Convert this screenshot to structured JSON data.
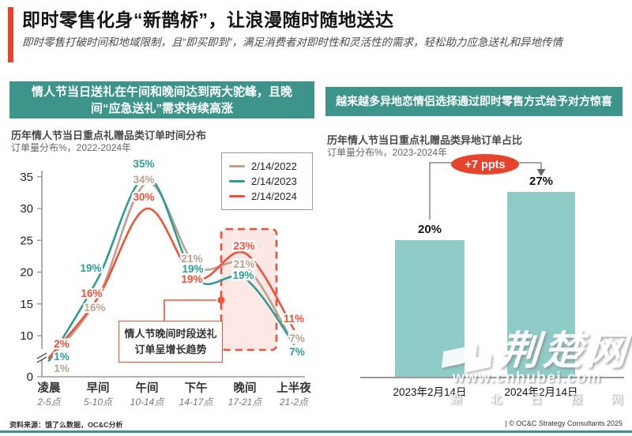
{
  "page": {
    "title": "即时零售化身“新鹊桥”，让浪漫随时随地送达",
    "subtitle": "即时零售打破时间和地域限制，且“即买即到”，满足消费者对即时性和灵活性的需求，轻松助力应急送礼和异地传情"
  },
  "colors": {
    "accent_red": "#E8432D",
    "teal_banner": "#3D948B",
    "bar_teal": "#8FCCC7",
    "axis_gray": "#999999",
    "highlight_red": "#F3503A"
  },
  "left_panel": {
    "banner": "情人节当日送礼在午间和晚间达到两大驼峰，且晚间“应急送礼”需求持续高涨",
    "chart_title": "历年情人节当日重点礼赠品类订单时间分布",
    "chart_subtitle": "订单量分布%，2022-2024年"
  },
  "right_panel": {
    "banner": "越来越多异地恋情侣选择通过即时零售方式给予对方惊喜",
    "chart_title": "历年情人节当日重点礼赠品类异地订单占比",
    "chart_subtitle": "订单量分布%，2023-2024年"
  },
  "chart_data": [
    {
      "type": "line",
      "title": "历年情人节当日重点礼赠品类订单时间分布",
      "ylabel": "订单量分布%",
      "categories": [
        "凌晨",
        "早间",
        "午间",
        "下午",
        "晚间",
        "上半夜"
      ],
      "category_sublabels": [
        "2-5点",
        "5-10点",
        "10-14点",
        "14-17点",
        "17-21点",
        "21-2点"
      ],
      "series": [
        {
          "name": "2/14/2022",
          "color": "#BCA28E",
          "values": [
            1,
            16,
            34,
            21,
            21,
            7
          ]
        },
        {
          "name": "2/14/2023",
          "color": "#2F9C94",
          "values": [
            1,
            19,
            35,
            19,
            19,
            7
          ]
        },
        {
          "name": "2/14/2024",
          "color": "#F3503A",
          "values": [
            2,
            16,
            30,
            19,
            23,
            11
          ]
        }
      ],
      "yticks": [
        35,
        30,
        25,
        20,
        15,
        10,
        0
      ],
      "ylim": [
        0,
        35
      ],
      "axis_break": true,
      "legend_position": "top-right",
      "highlight": {
        "category": "晚间"
      },
      "annotation": {
        "line1": "情人节晚间时段送礼",
        "line2": "订单呈增长趋势"
      }
    },
    {
      "type": "bar",
      "title": "历年情人节当日重点礼赠品类异地订单占比",
      "ylabel": "订单量分布%",
      "categories": [
        "2023年2月14日",
        "2024年2月14日"
      ],
      "values": [
        20,
        27
      ],
      "bar_color": "#8FCCC7",
      "delta_label": "+7 ppts"
    }
  ],
  "watermark": {
    "site_name": "荆楚网",
    "url": "www.cnhubei.com",
    "caption": "湖北日报网"
  },
  "footer": {
    "source": "资料来源：饿了么数据，OC&C分析",
    "copyright": "| © OC&C Strategy Consultants 2025"
  }
}
